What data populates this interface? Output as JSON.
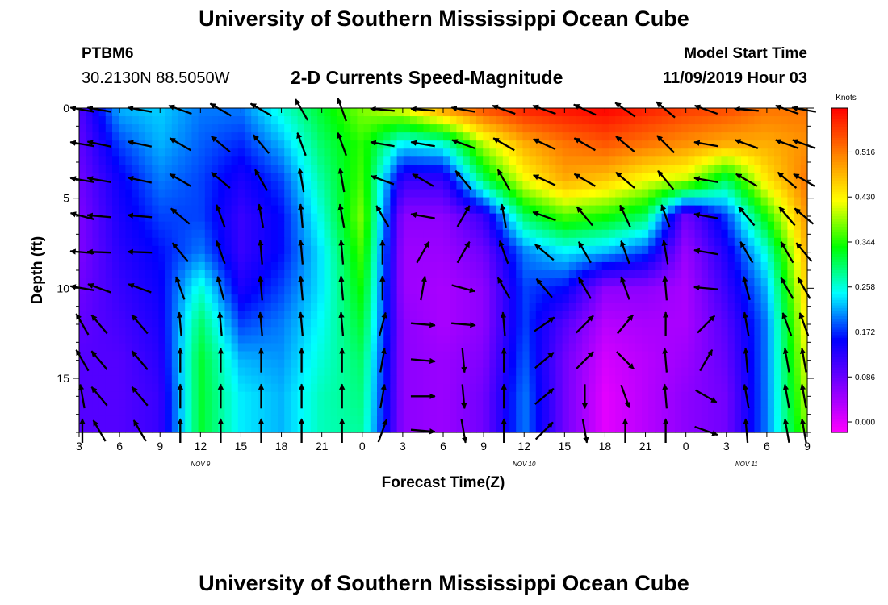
{
  "header": {
    "title_top": "University of Southern Mississippi Ocean Cube",
    "title_bottom": "University of Southern Mississippi Ocean Cube",
    "station_id": "PTBM6",
    "station_coords": "30.2130N 88.5050W",
    "chart_heading": "2-D Currents Speed-Magnitude",
    "model_start_label": "Model Start Time",
    "model_start_value": "11/09/2019 Hour 03"
  },
  "chart_data": {
    "type": "heatmap",
    "title": "2-D Currents Speed-Magnitude",
    "xlabel": "Forecast Time(Z)",
    "ylabel": "Depth (ft)",
    "x_tick_labels": [
      "3",
      "6",
      "9",
      "12",
      "15",
      "18",
      "21",
      "0",
      "3",
      "6",
      "9",
      "12",
      "15",
      "18",
      "21",
      "0",
      "3",
      "6",
      "9"
    ],
    "date_labels": [
      {
        "text": "NOV 9",
        "at_tick": 3
      },
      {
        "text": "NOV 10",
        "at_tick": 11
      },
      {
        "text": "NOV 11",
        "at_tick": 16.5
      }
    ],
    "y_ticks": [
      0,
      5,
      10,
      15
    ],
    "ylim": [
      0,
      18
    ],
    "y_inverted": true,
    "colorbar": {
      "unit": "Knots",
      "ticks": [
        0.0,
        0.086,
        0.172,
        0.258,
        0.344,
        0.43,
        0.516
      ],
      "tick_labels": [
        "0.000",
        "0.086",
        "0.172",
        "0.258",
        "0.344",
        "0.430",
        "0.516"
      ],
      "range": [
        -0.02,
        0.6
      ],
      "palette": [
        "#ff00ff",
        "#8000ff",
        "#0000ff",
        "#00ffff",
        "#00ff00",
        "#ffff00",
        "#ff8000",
        "#ff0000"
      ]
    },
    "speed_grid": {
      "description": "speed in knots; rows = depth 0..18 ft (step 2), columns = forecast hour 3..57 (step 3)",
      "depths_ft": [
        0,
        2,
        4,
        6,
        8,
        10,
        12,
        14,
        16,
        18
      ],
      "hours": [
        3,
        6,
        9,
        12,
        15,
        18,
        21,
        24,
        27,
        30,
        33,
        36,
        39,
        42,
        45,
        48,
        51,
        54,
        57
      ],
      "values": [
        [
          0.1,
          0.22,
          0.23,
          0.2,
          0.2,
          0.26,
          0.32,
          0.38,
          0.42,
          0.5,
          0.55,
          0.58,
          0.59,
          0.6,
          0.58,
          0.56,
          0.55,
          0.52,
          0.52
        ],
        [
          0.09,
          0.18,
          0.22,
          0.19,
          0.17,
          0.22,
          0.3,
          0.35,
          0.24,
          0.26,
          0.4,
          0.48,
          0.52,
          0.54,
          0.52,
          0.5,
          0.48,
          0.48,
          0.5
        ],
        [
          0.08,
          0.15,
          0.2,
          0.18,
          0.14,
          0.18,
          0.28,
          0.36,
          0.12,
          0.12,
          0.3,
          0.42,
          0.48,
          0.46,
          0.42,
          0.4,
          0.3,
          0.44,
          0.52
        ],
        [
          0.07,
          0.14,
          0.18,
          0.18,
          0.12,
          0.16,
          0.26,
          0.38,
          0.06,
          0.06,
          0.12,
          0.3,
          0.36,
          0.34,
          0.3,
          0.08,
          0.18,
          0.34,
          0.5
        ],
        [
          0.07,
          0.13,
          0.16,
          0.2,
          0.12,
          0.16,
          0.24,
          0.36,
          0.05,
          0.05,
          0.08,
          0.2,
          0.24,
          0.22,
          0.18,
          0.05,
          0.14,
          0.26,
          0.48
        ],
        [
          0.08,
          0.12,
          0.15,
          0.26,
          0.14,
          0.18,
          0.24,
          0.34,
          0.05,
          0.04,
          0.06,
          0.18,
          0.16,
          0.06,
          0.06,
          0.04,
          0.12,
          0.22,
          0.46
        ],
        [
          0.09,
          0.11,
          0.14,
          0.3,
          0.18,
          0.2,
          0.25,
          0.32,
          0.06,
          0.04,
          0.06,
          0.18,
          0.1,
          0.03,
          0.04,
          0.04,
          0.1,
          0.2,
          0.44
        ],
        [
          0.1,
          0.1,
          0.13,
          0.32,
          0.22,
          0.21,
          0.26,
          0.3,
          0.06,
          0.05,
          0.07,
          0.19,
          0.08,
          0.01,
          0.03,
          0.05,
          0.09,
          0.2,
          0.42
        ],
        [
          0.1,
          0.1,
          0.12,
          0.32,
          0.24,
          0.22,
          0.27,
          0.29,
          0.06,
          0.05,
          0.08,
          0.2,
          0.08,
          0.0,
          0.03,
          0.06,
          0.08,
          0.2,
          0.4
        ],
        [
          0.1,
          0.1,
          0.12,
          0.32,
          0.24,
          0.22,
          0.27,
          0.28,
          0.06,
          0.05,
          0.08,
          0.2,
          0.08,
          0.0,
          0.03,
          0.06,
          0.08,
          0.2,
          0.38
        ]
      ]
    },
    "vectors": {
      "description": "current direction arrows (degrees from east, counter-clockwise) at selected times/depths",
      "hours": [
        3,
        4.5,
        7.5,
        10.5,
        13.5,
        16.5,
        19.5,
        22.5,
        25.5,
        28.5,
        31.5,
        34.5,
        37.5,
        40.5,
        43.5,
        46.5,
        49.5,
        52.5,
        55.5,
        58.5
      ],
      "depths_ft": [
        0,
        2,
        4,
        6,
        8,
        10,
        12,
        14,
        16,
        18
      ],
      "angles_deg": [
        [
          170,
          170,
          170,
          160,
          150,
          150,
          120,
          110,
          175,
          175,
          170,
          160,
          160,
          155,
          145,
          140,
          160,
          175,
          160,
          170
        ],
        [
          170,
          168,
          168,
          150,
          140,
          130,
          110,
          110,
          170,
          170,
          160,
          150,
          155,
          150,
          140,
          135,
          170,
          160,
          160,
          160
        ],
        [
          170,
          170,
          168,
          150,
          140,
          120,
          100,
          100,
          160,
          150,
          130,
          120,
          155,
          150,
          140,
          130,
          170,
          150,
          140,
          150
        ],
        [
          165,
          175,
          175,
          140,
          110,
          100,
          95,
          100,
          120,
          170,
          60,
          100,
          160,
          130,
          115,
          110,
          170,
          130,
          130,
          140
        ],
        [
          175,
          178,
          178,
          130,
          110,
          95,
          95,
          95,
          90,
          60,
          60,
          110,
          140,
          120,
          110,
          100,
          170,
          120,
          120,
          130
        ],
        [
          170,
          160,
          160,
          110,
          105,
          95,
          95,
          95,
          90,
          80,
          -15,
          120,
          130,
          120,
          110,
          95,
          175,
          105,
          120,
          120
        ],
        [
          120,
          130,
          130,
          95,
          95,
          95,
          95,
          95,
          75,
          -5,
          -5,
          95,
          35,
          45,
          50,
          90,
          45,
          100,
          110,
          110
        ],
        [
          120,
          130,
          130,
          90,
          90,
          90,
          90,
          90,
          80,
          -5,
          -85,
          90,
          40,
          45,
          -45,
          95,
          60,
          95,
          100,
          100
        ],
        [
          100,
          130,
          130,
          90,
          90,
          90,
          90,
          90,
          80,
          0,
          -85,
          90,
          40,
          -90,
          -70,
          95,
          -30,
          100,
          100,
          100
        ],
        [
          90,
          120,
          120,
          90,
          90,
          90,
          90,
          90,
          70,
          -5,
          -80,
          90,
          45,
          -80,
          90,
          90,
          -20,
          95,
          100,
          100
        ]
      ]
    }
  }
}
